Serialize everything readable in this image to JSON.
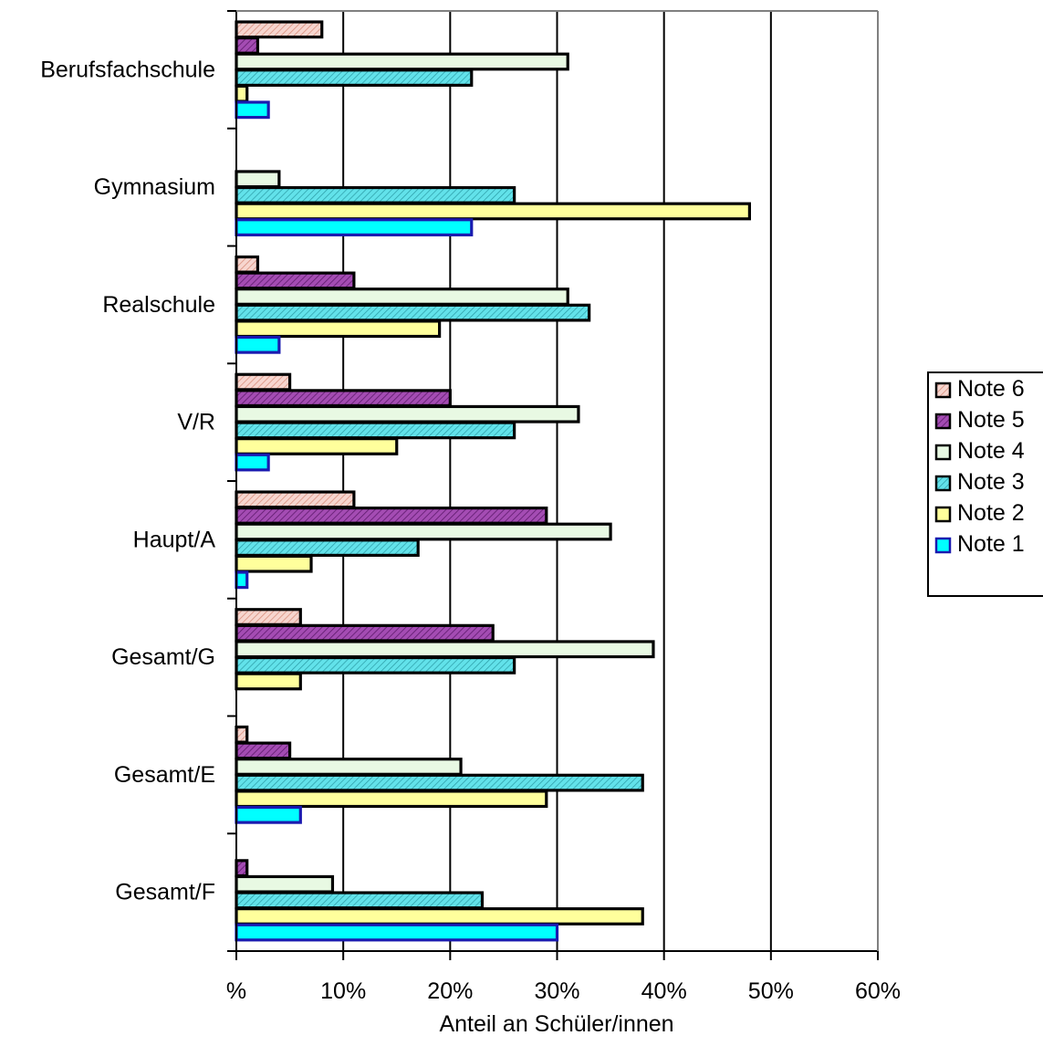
{
  "chart_data": {
    "type": "bar",
    "orientation": "horizontal",
    "title": "",
    "xlabel": "Anteil an Schüler/innen",
    "ylabel": "",
    "xlim": [
      0,
      60
    ],
    "x_ticks": [
      {
        "value": 0,
        "label": "%"
      },
      {
        "value": 10,
        "label": "10%"
      },
      {
        "value": 20,
        "label": "20%"
      },
      {
        "value": 30,
        "label": "30%"
      },
      {
        "value": 40,
        "label": "40%"
      },
      {
        "value": 50,
        "label": "50%"
      },
      {
        "value": 60,
        "label": "60%"
      }
    ],
    "grid": "vertical major gridlines",
    "legend_position": "right",
    "categories": [
      "Berufsfachschule",
      "Gymnasium",
      "Realschule",
      "V/R",
      "Haupt/A",
      "Gesamt/G",
      "Gesamt/E",
      "Gesamt/F"
    ],
    "series": [
      {
        "name": "Note 6",
        "color": "#f4c8c0",
        "pattern": "diagonal-hatch",
        "values": [
          8,
          0,
          2,
          5,
          11,
          6,
          1,
          0
        ]
      },
      {
        "name": "Note 5",
        "color": "#9a3aa8",
        "pattern": "diagonal-hatch",
        "values": [
          2,
          0,
          11,
          20,
          29,
          24,
          5,
          1
        ]
      },
      {
        "name": "Note 4",
        "color": "#e6f8e0",
        "pattern": "solid",
        "values": [
          31,
          4,
          31,
          32,
          35,
          39,
          21,
          9
        ]
      },
      {
        "name": "Note 3",
        "color": "#5ee0e8",
        "pattern": "diagonal-hatch",
        "values": [
          22,
          26,
          33,
          26,
          17,
          26,
          38,
          23
        ]
      },
      {
        "name": "Note 2",
        "color": "#ffff9a",
        "pattern": "solid",
        "values": [
          1,
          48,
          19,
          15,
          7,
          6,
          29,
          38
        ]
      },
      {
        "name": "Note 1",
        "color": "#00ffff",
        "pattern": "solid",
        "border": "#1a1ab0",
        "values": [
          3,
          22,
          4,
          3,
          1,
          0,
          6,
          30
        ]
      }
    ]
  }
}
